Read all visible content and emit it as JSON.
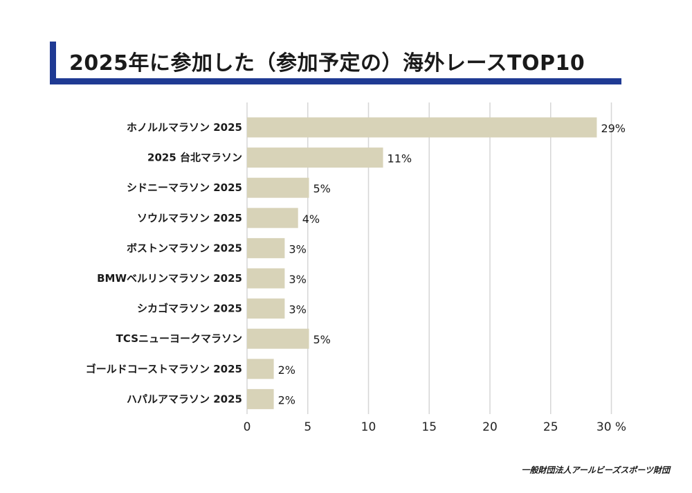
{
  "title": "2025年に参加した（参加予定の）海外レースTOP10",
  "source": "一般財団法人アールビーズスポーツ財団",
  "colors": {
    "accent": "#1f3a93",
    "bar": "#d8d3b8",
    "grid": "#d6d6d6"
  },
  "chart_data": {
    "type": "bar",
    "orientation": "horizontal",
    "categories": [
      "ホノルルマラソン 2025",
      "2025 台北マラソン",
      "シドニーマラソン 2025",
      "ソウルマラソン 2025",
      "ボストンマラソン 2025",
      "BMWベルリンマラソン 2025",
      "シカゴマラソン 2025",
      "TCSニューヨークマラソン",
      "ゴールドコーストマラソン 2025",
      "ハパルアマラソン 2025"
    ],
    "values": [
      28.8,
      11.2,
      5.1,
      4.2,
      3.1,
      3.1,
      3.1,
      5.1,
      2.2,
      2.2
    ],
    "value_labels": [
      "29%",
      "11%",
      "5%",
      "4%",
      "3%",
      "3%",
      "3%",
      "5%",
      "2%",
      "2%"
    ],
    "xlim": [
      0,
      30
    ],
    "xticks": [
      0,
      5,
      10,
      15,
      20,
      25,
      30
    ],
    "x_unit": "%",
    "grid": "vertical"
  }
}
